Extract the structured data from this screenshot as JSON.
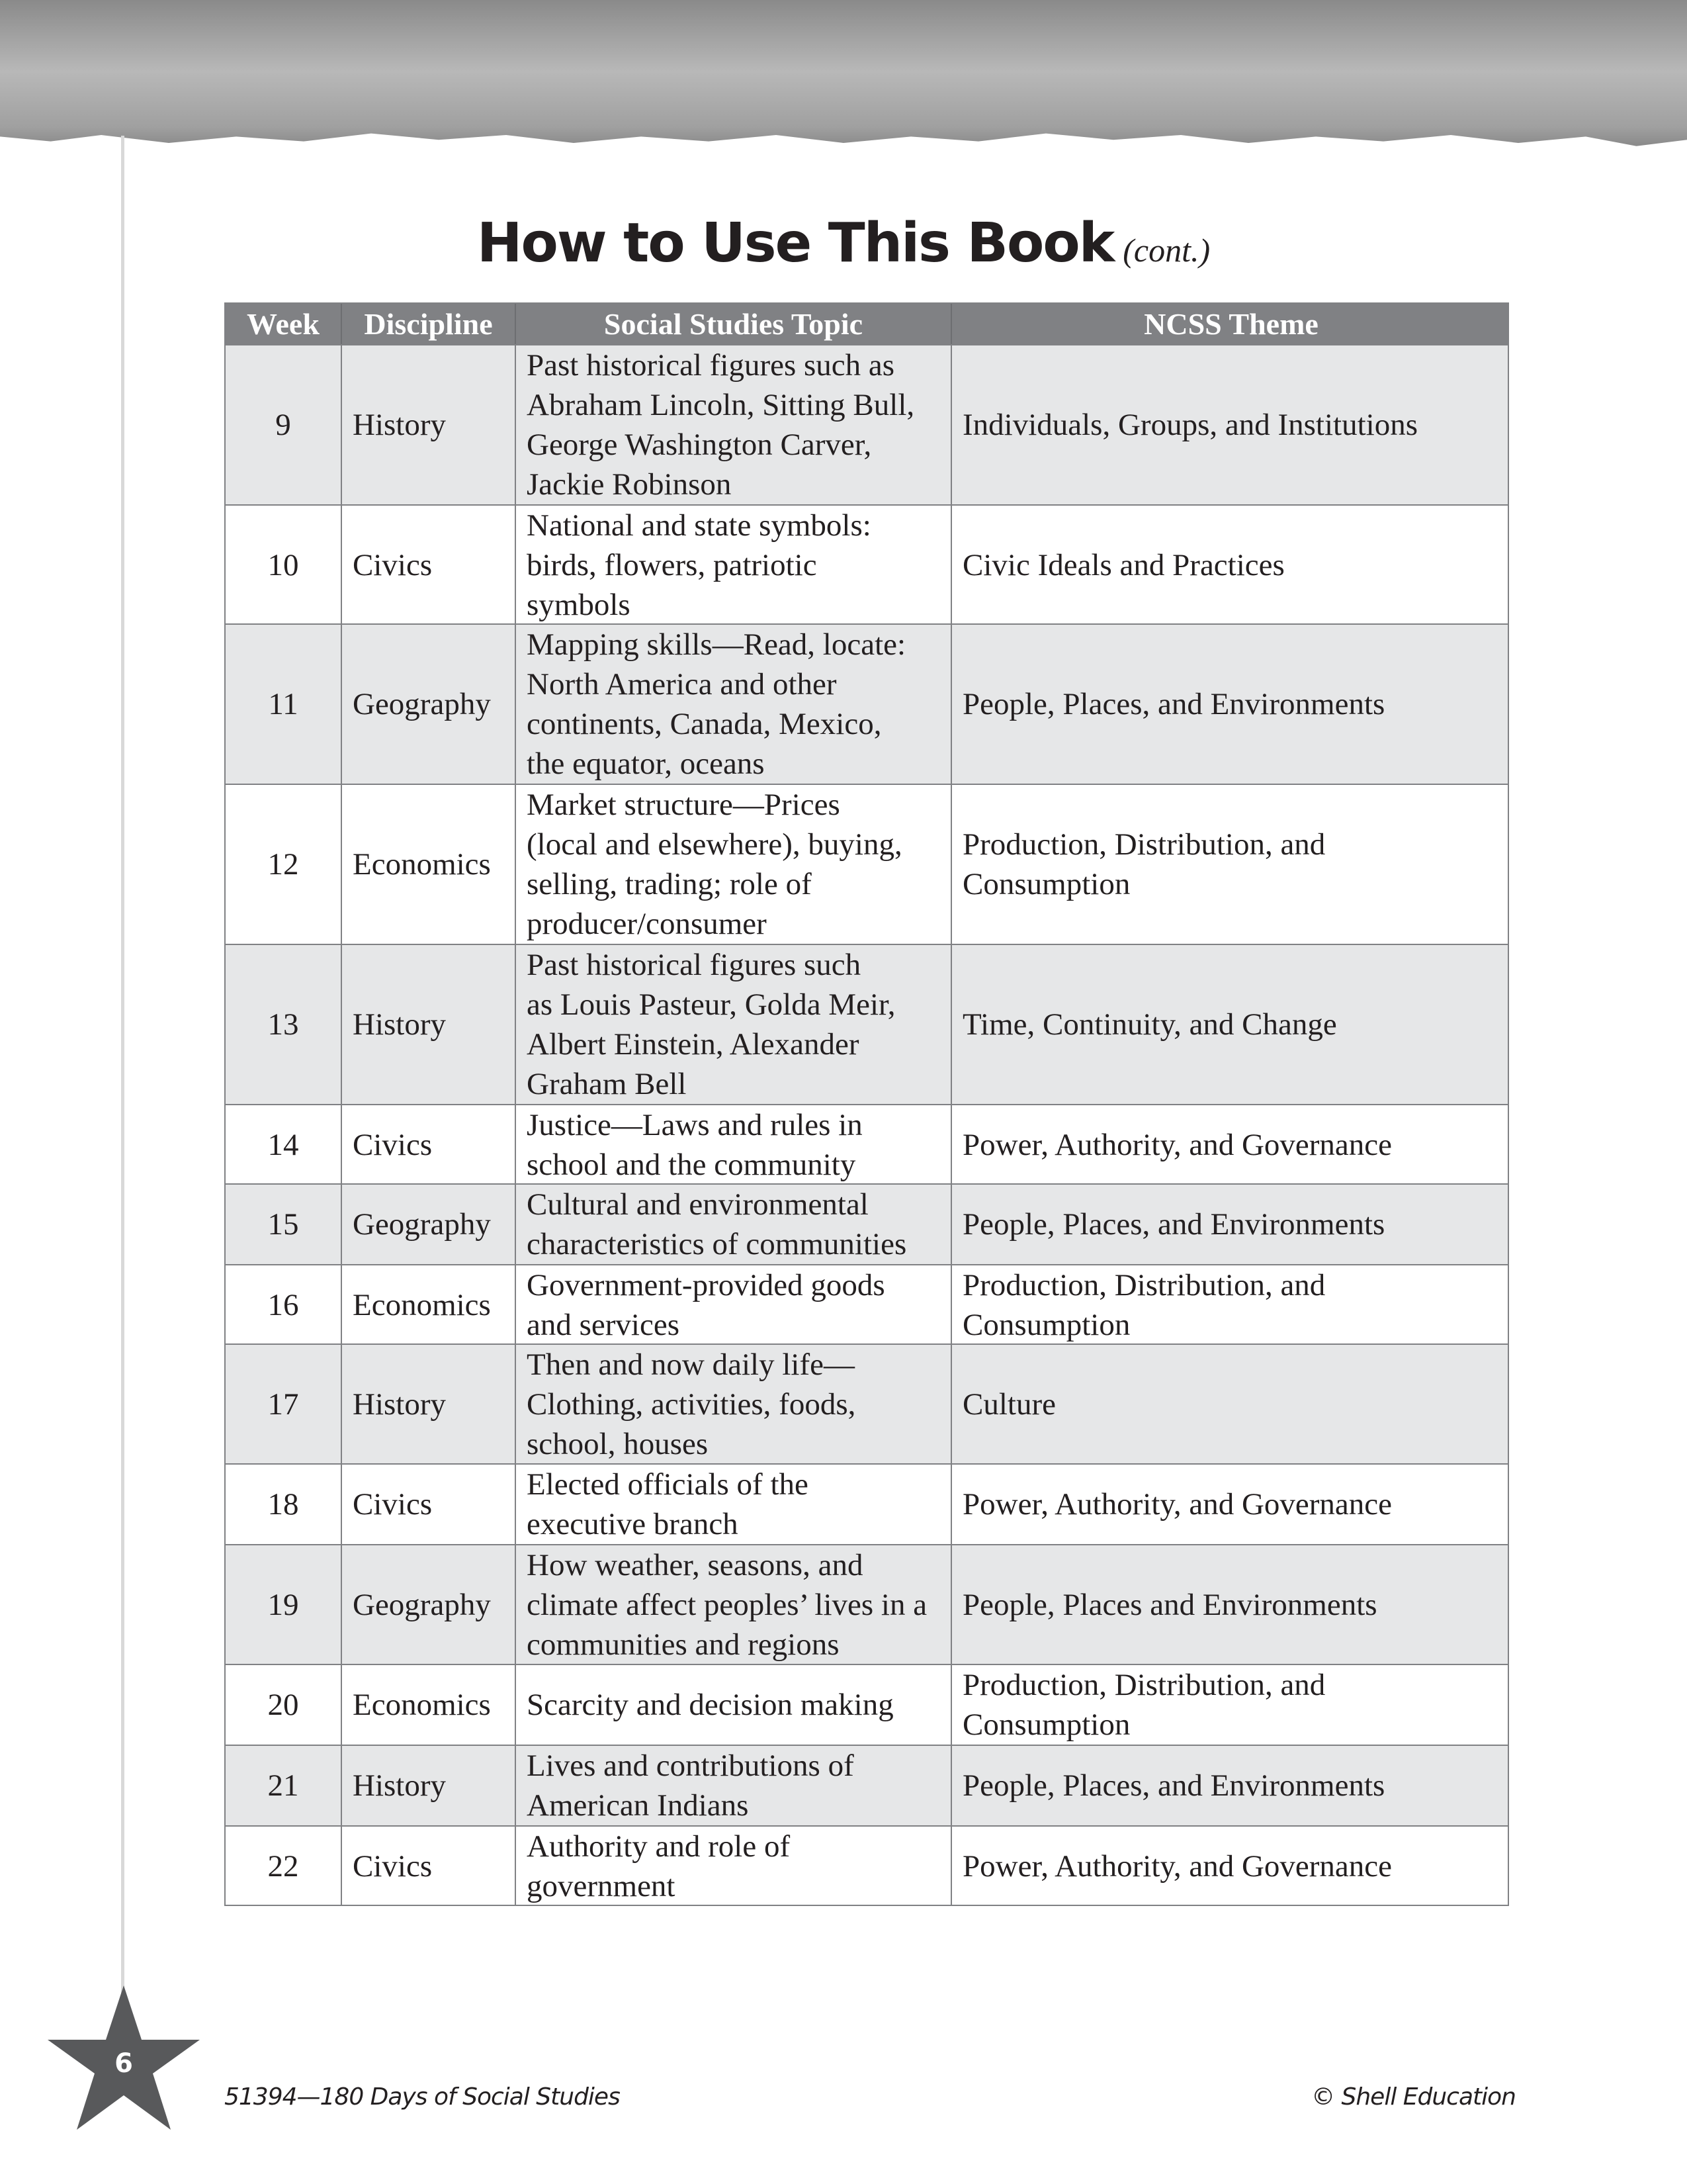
{
  "header": {
    "title": "How to Use This Book",
    "subtitle": "(cont.)"
  },
  "table": {
    "columns": [
      "Week",
      "Discipline",
      "Social Studies Topic",
      "NCSS Theme"
    ],
    "rows": [
      {
        "week": "9",
        "discipline": "History",
        "topic": "Past historical figures such as\nAbraham Lincoln, Sitting Bull,\nGeorge Washington Carver,\nJackie Robinson",
        "theme": "Individuals, Groups, and Institutions"
      },
      {
        "week": "10",
        "discipline": "Civics",
        "topic": "National and state symbols:\nbirds, flowers, patriotic\nsymbols",
        "theme": "Civic Ideals and Practices"
      },
      {
        "week": "11",
        "discipline": "Geography",
        "topic": "Mapping skills—Read, locate:\nNorth America and other\ncontinents, Canada, Mexico,\nthe equator, oceans",
        "theme": "People, Places, and Environments"
      },
      {
        "week": "12",
        "discipline": "Economics",
        "topic": "Market structure—Prices\n(local and elsewhere), buying,\nselling, trading; role of\nproducer/consumer",
        "theme": "Production, Distribution, and\nConsumption"
      },
      {
        "week": "13",
        "discipline": "History",
        "topic": "Past historical figures such\nas Louis Pasteur, Golda Meir,\nAlbert Einstein, Alexander\nGraham Bell",
        "theme": "Time, Continuity, and Change"
      },
      {
        "week": "14",
        "discipline": "Civics",
        "topic": "Justice—Laws and rules in\nschool and the community",
        "theme": "Power, Authority, and Governance"
      },
      {
        "week": "15",
        "discipline": "Geography",
        "topic": "Cultural and environmental\ncharacteristics of communities",
        "theme": "People, Places, and Environments"
      },
      {
        "week": "16",
        "discipline": "Economics",
        "topic": "Government-provided goods\nand services",
        "theme": "Production, Distribution, and\nConsumption"
      },
      {
        "week": "17",
        "discipline": "History",
        "topic": "Then and now daily life—\nClothing, activities, foods,\nschool, houses",
        "theme": "Culture"
      },
      {
        "week": "18",
        "discipline": "Civics",
        "topic": "Elected officials of the\nexecutive branch",
        "theme": "Power, Authority, and Governance"
      },
      {
        "week": "19",
        "discipline": "Geography",
        "topic": "How weather, seasons, and\nclimate affect peoples’ lives in a\ncommunities and regions",
        "theme": "People, Places and Environments"
      },
      {
        "week": "20",
        "discipline": "Economics",
        "topic": "Scarcity and decision making",
        "theme": "Production, Distribution, and\nConsumption"
      },
      {
        "week": "21",
        "discipline": "History",
        "topic": "Lives and contributions of\nAmerican Indians",
        "theme": "People, Places, and Environments"
      },
      {
        "week": "22",
        "discipline": "Civics",
        "topic": "Authority and role of\ngovernment",
        "theme": "Power, Authority, and Governance"
      }
    ]
  },
  "footer": {
    "page_number": "6",
    "left": "51394—180 Days of Social Studies",
    "right": "© Shell Education"
  },
  "colors": {
    "header_bg": "#808184",
    "alt_row": "#e6e7e8",
    "text": "#231f20"
  }
}
